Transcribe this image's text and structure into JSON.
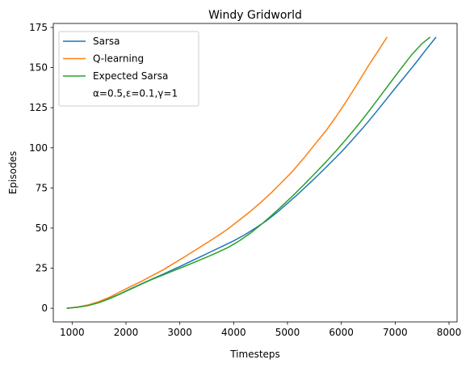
{
  "chart_data": {
    "type": "line",
    "title": "Windy Gridworld",
    "xlabel": "Timesteps",
    "ylabel": "Episodes",
    "xlim": [
      650,
      8150
    ],
    "ylim": [
      -8.5,
      177.5
    ],
    "xticks": [
      1000,
      2000,
      3000,
      4000,
      5000,
      6000,
      7000,
      8000
    ],
    "xtick_labels": [
      "1000",
      "2000",
      "3000",
      "4000",
      "5000",
      "6000",
      "7000",
      "8000"
    ],
    "yticks": [
      0,
      25,
      50,
      75,
      100,
      125,
      150,
      175
    ],
    "ytick_labels": [
      "0",
      "25",
      "50",
      "75",
      "100",
      "125",
      "150",
      "175"
    ],
    "grid": false,
    "legend": {
      "position": "top-left",
      "note": "α=0.5,ε=0.1,γ=1"
    },
    "series": [
      {
        "name": "Sarsa",
        "color": "#1f77b4",
        "points": [
          [
            900,
            0
          ],
          [
            1100,
            0.6
          ],
          [
            1300,
            1.8
          ],
          [
            1500,
            3.7
          ],
          [
            1700,
            6.2
          ],
          [
            1900,
            9.1
          ],
          [
            2100,
            12.4
          ],
          [
            2300,
            15.4
          ],
          [
            2500,
            18.4
          ],
          [
            2700,
            21.4
          ],
          [
            2900,
            24.5
          ],
          [
            3000,
            26.0
          ],
          [
            3200,
            29.2
          ],
          [
            3400,
            32.4
          ],
          [
            3600,
            35.6
          ],
          [
            3800,
            38.8
          ],
          [
            4000,
            42.0
          ],
          [
            4200,
            45.7
          ],
          [
            4400,
            49.8
          ],
          [
            4600,
            54.3
          ],
          [
            4800,
            59.6
          ],
          [
            5000,
            65.4
          ],
          [
            5200,
            71.3
          ],
          [
            5400,
            77.6
          ],
          [
            5600,
            84.0
          ],
          [
            5800,
            90.6
          ],
          [
            6000,
            97.4
          ],
          [
            6200,
            104.8
          ],
          [
            6400,
            112.3
          ],
          [
            6600,
            120.4
          ],
          [
            6800,
            128.7
          ],
          [
            7000,
            137.1
          ],
          [
            7200,
            145.3
          ],
          [
            7400,
            153.6
          ],
          [
            7600,
            162.3
          ],
          [
            7760,
            169
          ]
        ]
      },
      {
        "name": "Q-learning",
        "color": "#ff7f0e",
        "points": [
          [
            900,
            0
          ],
          [
            1100,
            0.8
          ],
          [
            1300,
            2.1
          ],
          [
            1500,
            4.2
          ],
          [
            1700,
            7.0
          ],
          [
            1900,
            10.4
          ],
          [
            2100,
            13.8
          ],
          [
            2300,
            17.0
          ],
          [
            2500,
            20.6
          ],
          [
            2700,
            24.1
          ],
          [
            2900,
            28.2
          ],
          [
            3100,
            32.3
          ],
          [
            3300,
            36.5
          ],
          [
            3500,
            40.7
          ],
          [
            3700,
            45.0
          ],
          [
            3900,
            49.6
          ],
          [
            4100,
            54.8
          ],
          [
            4300,
            60.1
          ],
          [
            4500,
            65.9
          ],
          [
            4700,
            72.0
          ],
          [
            4900,
            78.7
          ],
          [
            5100,
            85.6
          ],
          [
            5300,
            93.4
          ],
          [
            5500,
            101.8
          ],
          [
            5700,
            110.0
          ],
          [
            5900,
            119.3
          ],
          [
            6100,
            129.3
          ],
          [
            6300,
            140.0
          ],
          [
            6500,
            151.0
          ],
          [
            6700,
            161.2
          ],
          [
            6850,
            169
          ]
        ]
      },
      {
        "name": "Expected Sarsa",
        "color": "#2ca02c",
        "points": [
          [
            900,
            0
          ],
          [
            1100,
            0.6
          ],
          [
            1300,
            1.7
          ],
          [
            1500,
            3.5
          ],
          [
            1700,
            6.0
          ],
          [
            1900,
            9.0
          ],
          [
            2100,
            12.1
          ],
          [
            2300,
            15.2
          ],
          [
            2500,
            18.2
          ],
          [
            2700,
            20.9
          ],
          [
            2900,
            23.6
          ],
          [
            3100,
            26.3
          ],
          [
            3300,
            29.1
          ],
          [
            3500,
            31.9
          ],
          [
            3700,
            34.8
          ],
          [
            3900,
            38.0
          ],
          [
            4100,
            41.9
          ],
          [
            4300,
            46.5
          ],
          [
            4500,
            51.9
          ],
          [
            4700,
            57.7
          ],
          [
            4900,
            63.8
          ],
          [
            5100,
            70.2
          ],
          [
            5300,
            76.8
          ],
          [
            5500,
            83.7
          ],
          [
            5700,
            90.7
          ],
          [
            5900,
            98.0
          ],
          [
            6100,
            105.7
          ],
          [
            6300,
            113.8
          ],
          [
            6500,
            122.3
          ],
          [
            6700,
            131.2
          ],
          [
            6900,
            140.2
          ],
          [
            7100,
            149.0
          ],
          [
            7300,
            157.7
          ],
          [
            7500,
            165.0
          ],
          [
            7650,
            169
          ]
        ]
      }
    ]
  }
}
